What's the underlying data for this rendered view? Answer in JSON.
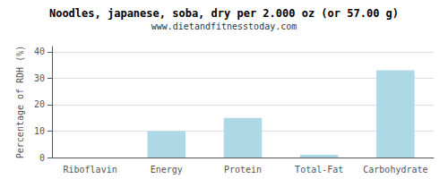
{
  "chart_data": {
    "type": "bar",
    "title": "Noodles, japanese, soba, dry per 2.000 oz (or 57.00 g)",
    "subtitle": "www.dietandfitnesstoday.com",
    "categories": [
      "Riboflavin",
      "Energy",
      "Protein",
      "Total-Fat",
      "Carbohydrate"
    ],
    "values": [
      0.0,
      10.0,
      15.0,
      1.0,
      33.0
    ],
    "color": "#add8e6",
    "ylabel": "Percentage of RDH (%)",
    "ylim": [
      0,
      42
    ],
    "yticks": [
      0,
      10,
      20,
      30,
      40
    ],
    "grid": true
  }
}
